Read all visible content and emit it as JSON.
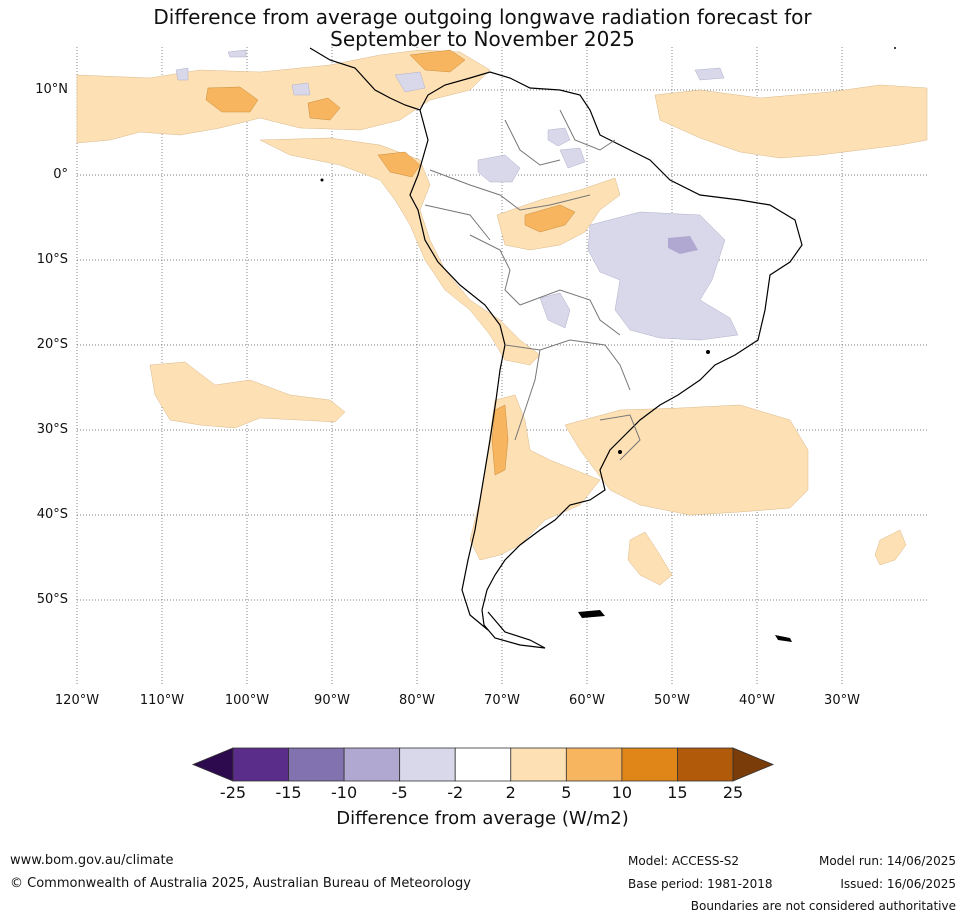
{
  "title_line1": "Difference from average outgoing longwave radiation forecast for",
  "title_line2": "September to November 2025",
  "lat_labels": [
    "10°N",
    "0°",
    "10°S",
    "20°S",
    "30°S",
    "40°S",
    "50°S"
  ],
  "lon_labels": [
    "120°W",
    "110°W",
    "100°W",
    "90°W",
    "80°W",
    "70°W",
    "60°W",
    "50°W",
    "40°W",
    "30°W"
  ],
  "colorbar": {
    "ticks": [
      "-25",
      "-15",
      "-10",
      "-5",
      "-2",
      "2",
      "5",
      "10",
      "15",
      "25"
    ],
    "colors": [
      "#2d0a4e",
      "#5a2d8a",
      "#8272b0",
      "#b0a8d0",
      "#d8d8ea",
      "#ffffff",
      "#fde0b4",
      "#f8b560",
      "#e08518",
      "#b05a0a",
      "#7a3c08"
    ],
    "label": "Difference from average (W/m2)"
  },
  "footer": {
    "website": "www.bom.gov.au/climate",
    "copyright": "© Commonwealth of Australia 2025, Australian Bureau of Meteorology",
    "model": "Model: ACCESS-S2",
    "base_period": "Base period: 1981-2018",
    "model_run": "Model run: 14/06/2025",
    "issued": "Issued: 16/06/2025",
    "disclaimer": "Boundaries are not considered authoritative"
  }
}
